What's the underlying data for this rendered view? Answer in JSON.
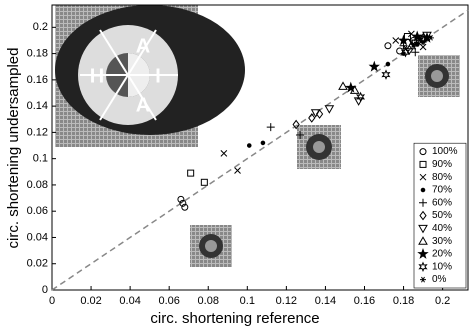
{
  "chart_data": {
    "type": "scatter",
    "xlabel": "circ. shortening reference",
    "ylabel": "circ. shortening undersampled",
    "xlim": [
      0,
      0.213
    ],
    "ylim": [
      0,
      0.217
    ],
    "xticks": [
      0,
      0.02,
      0.04,
      0.06,
      0.08,
      0.1,
      0.12,
      0.14,
      0.16,
      0.18,
      0.2
    ],
    "yticks": [
      0,
      0.02,
      0.04,
      0.06,
      0.08,
      0.1,
      0.12,
      0.14,
      0.16,
      0.18,
      0.2
    ],
    "legend": "lower right",
    "reference_line": "dashed",
    "annotations": [
      "H",
      "A",
      "I",
      "A"
    ],
    "series": [
      {
        "name": "100%",
        "marker": "circle",
        "color": "#000",
        "x": [
          0.066,
          0.067,
          0.068,
          0.172,
          0.178,
          0.185
        ],
        "y": [
          0.069,
          0.066,
          0.063,
          0.186,
          0.182,
          0.19
        ]
      },
      {
        "name": "90%",
        "marker": "square",
        "color": "#000",
        "x": [
          0.071,
          0.078,
          0.182,
          0.186,
          0.19
        ],
        "y": [
          0.089,
          0.082,
          0.193,
          0.188,
          0.191
        ]
      },
      {
        "name": "80%",
        "marker": "x",
        "color": "#000",
        "x": [
          0.088,
          0.095,
          0.176,
          0.184,
          0.19
        ],
        "y": [
          0.104,
          0.091,
          0.19,
          0.195,
          0.185
        ]
      },
      {
        "name": "70%",
        "marker": "dot",
        "color": "#000",
        "x": [
          0.101,
          0.108,
          0.172,
          0.18,
          0.187
        ],
        "y": [
          0.11,
          0.112,
          0.172,
          0.18,
          0.187
        ]
      },
      {
        "name": "60%",
        "marker": "plus",
        "color": "#000",
        "x": [
          0.112,
          0.127,
          0.18,
          0.186
        ],
        "y": [
          0.124,
          0.118,
          0.186,
          0.181
        ]
      },
      {
        "name": "50%",
        "marker": "diamond",
        "color": "#000",
        "x": [
          0.125,
          0.133,
          0.137,
          0.183,
          0.19
        ],
        "y": [
          0.126,
          0.131,
          0.134,
          0.183,
          0.19
        ]
      },
      {
        "name": "40%",
        "marker": "triangle-down",
        "color": "#000",
        "x": [
          0.135,
          0.142,
          0.157,
          0.185,
          0.192
        ],
        "y": [
          0.135,
          0.138,
          0.144,
          0.188,
          0.194
        ]
      },
      {
        "name": "30%",
        "marker": "triangle-up",
        "color": "#000",
        "x": [
          0.149,
          0.155,
          0.184,
          0.19
        ],
        "y": [
          0.155,
          0.152,
          0.186,
          0.192
        ]
      },
      {
        "name": "20%",
        "marker": "star",
        "color": "#000",
        "x": [
          0.153,
          0.165,
          0.18,
          0.187,
          0.192
        ],
        "y": [
          0.154,
          0.17,
          0.19,
          0.193,
          0.192
        ]
      },
      {
        "name": "10%",
        "marker": "hexagram",
        "color": "#000",
        "x": [
          0.158,
          0.171,
          0.181,
          0.188
        ],
        "y": [
          0.147,
          0.164,
          0.181,
          0.19
        ]
      },
      {
        "name": "0%",
        "marker": "asterisk",
        "color": "#000",
        "x": [
          0.181,
          0.185,
          0.19,
          0.194
        ],
        "y": [
          0.184,
          0.187,
          0.189,
          0.192
        ]
      }
    ]
  }
}
